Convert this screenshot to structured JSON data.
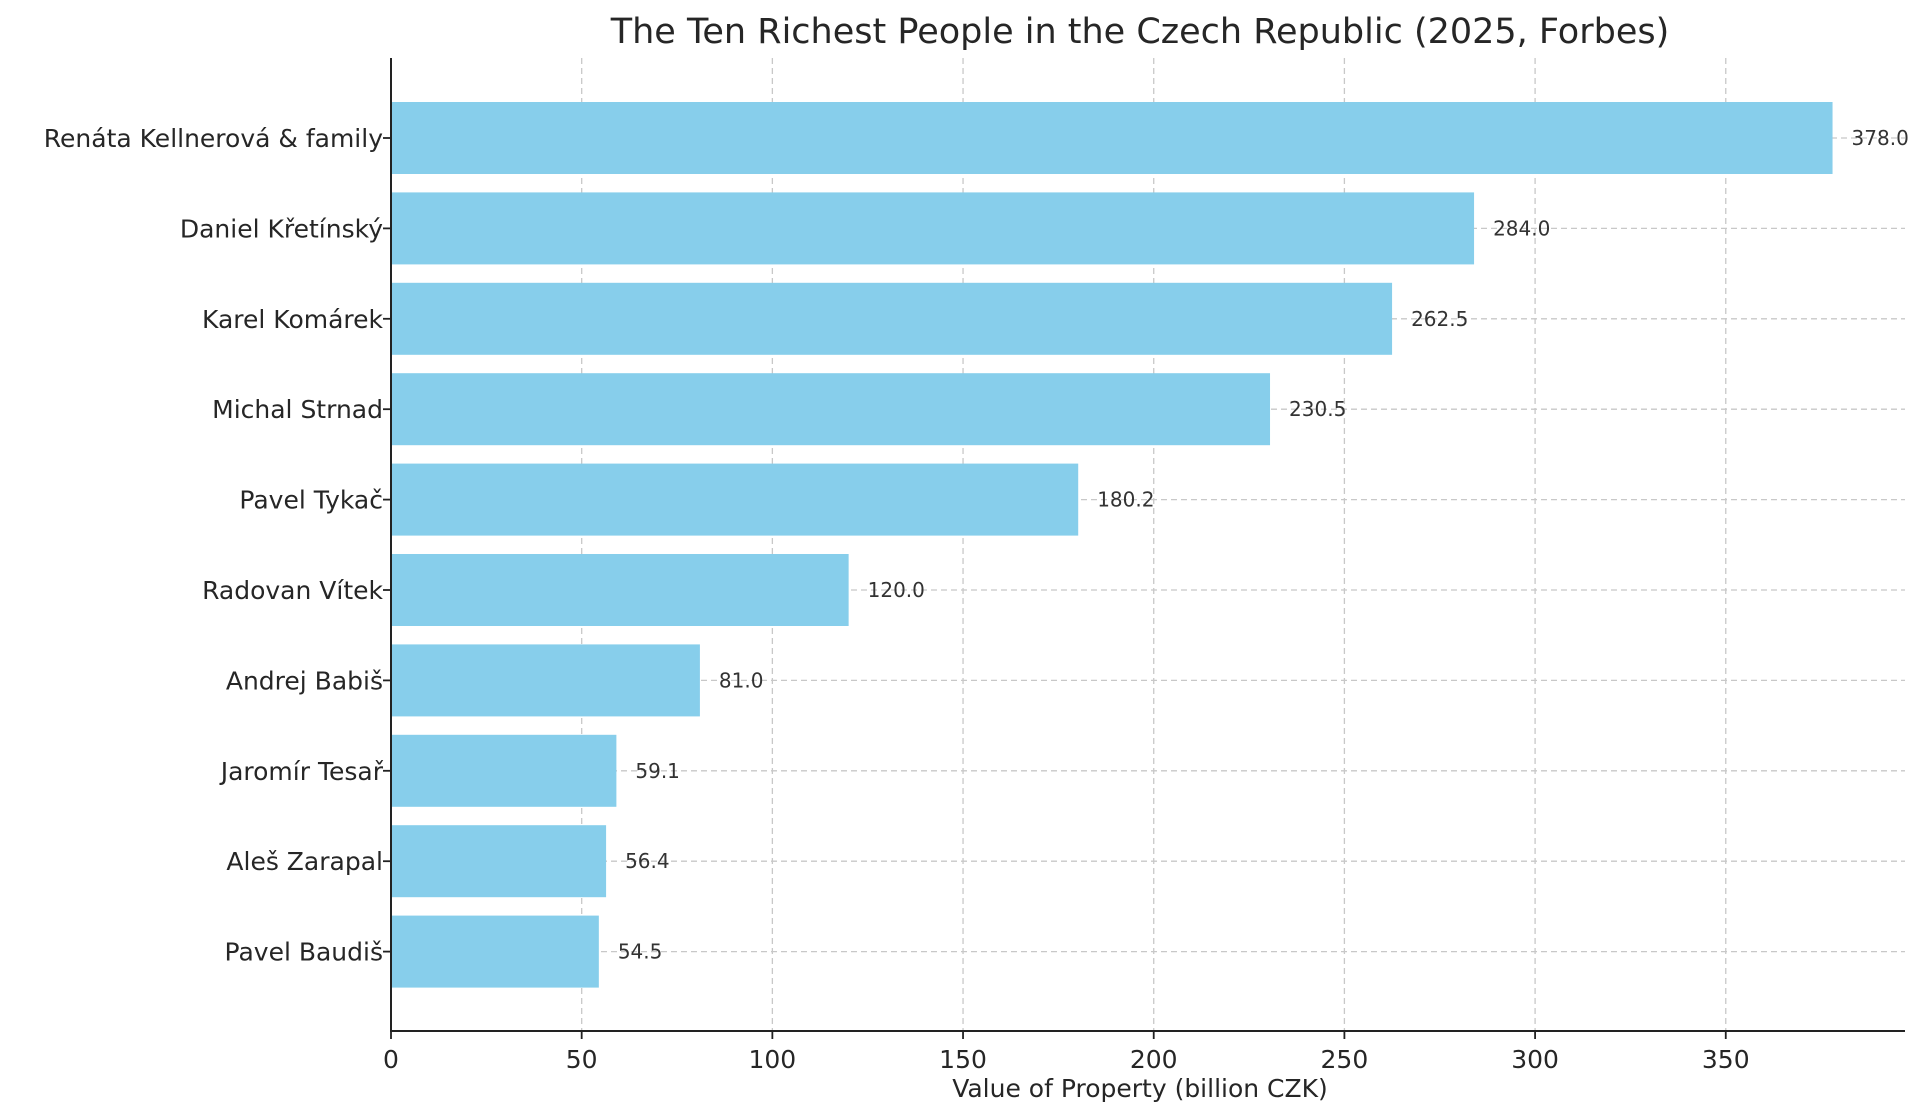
{
  "chart_data": {
    "type": "bar",
    "orientation": "horizontal",
    "title": "The Ten Richest People in the Czech Republic (2025, Forbes)",
    "xlabel": "Value of Property (billion CZK)",
    "ylabel": "",
    "categories": [
      "Renáta Kellnerová & family",
      "Daniel Křetínský",
      "Karel Komárek",
      "Michal Strnad",
      "Pavel Tykač",
      "Radovan Vítek",
      "Andrej Babiš",
      "Jaromír Tesař",
      "Aleš Zarapal",
      "Pavel Baudiš"
    ],
    "values": [
      378.0,
      284.0,
      262.5,
      230.5,
      180.2,
      120.0,
      81.0,
      59.1,
      56.4,
      54.5
    ],
    "value_labels": [
      "378.0",
      "284.0",
      "262.5",
      "230.5",
      "180.2",
      "120.0",
      "81.0",
      "59.1",
      "56.4",
      "54.5"
    ],
    "x_ticks": [
      "0",
      "50",
      "100",
      "150",
      "200",
      "250",
      "300",
      "350"
    ],
    "xlim": [
      0,
      397
    ],
    "grid": true,
    "bar_color": "#87ceeb"
  }
}
